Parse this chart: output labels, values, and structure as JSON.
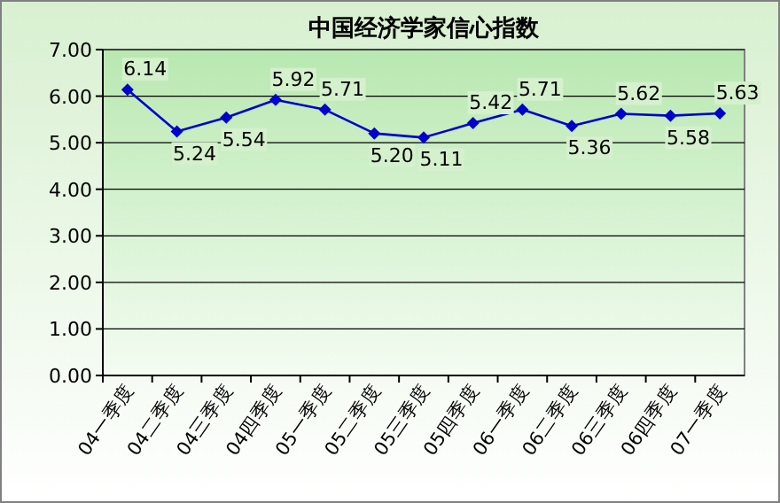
{
  "chart_data": {
    "type": "line",
    "title": "中国经济学家信心指数",
    "categories": [
      "04一季度",
      "04二季度",
      "04三季度",
      "04四季度",
      "05一季度",
      "05二季度",
      "05三季度",
      "05四季度",
      "06一季度",
      "06二季度",
      "06三季度",
      "06四季度",
      "07一季度"
    ],
    "series": [
      {
        "color": "#0000cc",
        "values": [
          6.14,
          5.24,
          5.54,
          5.92,
          5.71,
          5.2,
          5.11,
          5.42,
          5.71,
          5.36,
          5.62,
          5.58,
          5.63
        ],
        "value_labels": [
          "6.14",
          "5.24",
          "5.54",
          "5.92",
          "5.71",
          "5.20",
          "5.11",
          "5.42",
          "5.71",
          "5.36",
          "5.62",
          "5.58",
          "5.63"
        ]
      }
    ],
    "ylim": [
      0,
      7
    ],
    "yticks": [
      {
        "value": 0,
        "label": "0.00"
      },
      {
        "value": 1,
        "label": "1.00"
      },
      {
        "value": 2,
        "label": "2.00"
      },
      {
        "value": 3,
        "label": "3.00"
      },
      {
        "value": 4,
        "label": "4.00"
      },
      {
        "value": 5,
        "label": "5.00"
      },
      {
        "value": 6,
        "label": "6.00"
      },
      {
        "value": 7,
        "label": "7.00"
      }
    ],
    "grid": "y",
    "marker": "diamond",
    "line_style": "solid"
  }
}
